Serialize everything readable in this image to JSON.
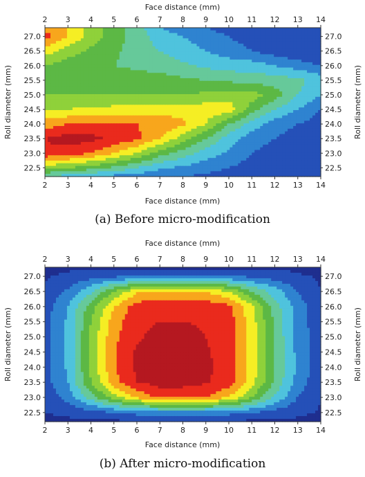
{
  "palette": {
    "levels": [
      "#1f2e8f",
      "#2550b8",
      "#2f83d0",
      "#4fc3dd",
      "#66c99a",
      "#5cb845",
      "#8fd13a",
      "#f5ee24",
      "#f8a61c",
      "#ea2a1d",
      "#b51820"
    ]
  },
  "chart_data": [
    {
      "type": "heatmap",
      "caption": "(a) Before micro-modification",
      "xlabel": "Face distance (mm)",
      "ylabel": "Roll diameter (mm)",
      "x_ticks": [
        "2",
        "3",
        "4",
        "5",
        "6",
        "7",
        "8",
        "9",
        "10",
        "11",
        "12",
        "13",
        "14"
      ],
      "y_ticks": [
        "27.0",
        "26.5",
        "26.0",
        "25.5",
        "25.0",
        "24.5",
        "24.0",
        "23.5",
        "23.0",
        "22.5"
      ],
      "xlim": [
        2,
        14
      ],
      "ylim": [
        22.2,
        27.3
      ],
      "grid": false,
      "x": [
        2,
        3,
        4,
        5,
        6,
        7,
        8,
        9,
        10,
        11,
        12,
        13,
        14
      ],
      "y": [
        27.3,
        27.0,
        26.5,
        26.0,
        25.5,
        25.0,
        24.5,
        24.0,
        23.5,
        23.0,
        22.5,
        22.2
      ],
      "z": [
        [
          8.5,
          8.0,
          6.5,
          5.5,
          4.5,
          3.0,
          2.5,
          2.0,
          1.5,
          1.0,
          1.0,
          1.0,
          1.0
        ],
        [
          9.5,
          8.0,
          6.5,
          5.5,
          4.5,
          3.5,
          3.0,
          2.5,
          2.0,
          1.5,
          1.2,
          1.0,
          1.0
        ],
        [
          7.5,
          6.5,
          5.8,
          5.2,
          4.5,
          4.0,
          3.5,
          3.0,
          2.5,
          2.0,
          1.5,
          1.2,
          1.0
        ],
        [
          6.0,
          5.5,
          5.2,
          5.0,
          4.8,
          4.5,
          4.2,
          3.8,
          3.5,
          3.5,
          3.0,
          2.5,
          2.0
        ],
        [
          5.5,
          5.5,
          5.5,
          5.5,
          5.5,
          5.5,
          5.2,
          5.0,
          4.8,
          4.6,
          4.5,
          4.3,
          3.5
        ],
        [
          6.0,
          6.0,
          6.0,
          6.0,
          6.0,
          6.0,
          6.0,
          6.2,
          6.5,
          6.5,
          5.5,
          4.0,
          3.0
        ],
        [
          7.0,
          7.0,
          7.2,
          7.3,
          7.4,
          7.5,
          7.5,
          7.6,
          7.6,
          5.5,
          4.0,
          3.0,
          2.0
        ],
        [
          8.5,
          9.0,
          9.2,
          9.2,
          9.0,
          8.8,
          8.2,
          7.0,
          5.0,
          3.5,
          2.5,
          2.0,
          1.5
        ],
        [
          10.0,
          10.5,
          10.3,
          9.8,
          9.2,
          8.0,
          6.5,
          5.0,
          3.5,
          2.5,
          2.0,
          1.5,
          1.2
        ],
        [
          9.8,
          9.5,
          9.0,
          8.0,
          7.0,
          5.5,
          4.5,
          3.5,
          2.8,
          2.0,
          1.5,
          1.2,
          1.0
        ],
        [
          6.5,
          6.0,
          5.5,
          4.8,
          4.0,
          3.2,
          2.8,
          2.4,
          2.0,
          1.6,
          1.3,
          1.1,
          1.0
        ],
        [
          4.0,
          3.5,
          3.0,
          2.7,
          2.4,
          2.2,
          2.0,
          1.8,
          1.6,
          1.4,
          1.2,
          1.0,
          1.0
        ]
      ]
    },
    {
      "type": "heatmap",
      "caption": "(b) After micro-modification",
      "xlabel": "Face distance (mm)",
      "ylabel": "Roll diameter (mm)",
      "x_ticks": [
        "2",
        "3",
        "4",
        "5",
        "6",
        "7",
        "8",
        "9",
        "10",
        "11",
        "12",
        "13",
        "14"
      ],
      "y_ticks": [
        "27.0",
        "26.5",
        "26.0",
        "25.5",
        "25.0",
        "24.5",
        "24.0",
        "23.5",
        "23.0",
        "22.5"
      ],
      "xlim": [
        2,
        14
      ],
      "ylim": [
        22.2,
        27.3
      ],
      "grid": false,
      "x": [
        2,
        3,
        4,
        5,
        6,
        7,
        8,
        9,
        10,
        11,
        12,
        13,
        14
      ],
      "y": [
        27.3,
        27.0,
        26.5,
        26.0,
        25.5,
        25.0,
        24.5,
        24.0,
        23.5,
        23.0,
        22.5,
        22.2
      ],
      "z": [
        [
          0.8,
          0.8,
          0.8,
          0.8,
          0.8,
          0.8,
          0.8,
          0.8,
          0.8,
          0.8,
          0.8,
          0.8,
          0.8
        ],
        [
          0.9,
          1.2,
          1.6,
          1.8,
          2.0,
          2.0,
          2.0,
          2.0,
          2.0,
          1.8,
          1.5,
          1.1,
          0.9
        ],
        [
          1.2,
          2.2,
          3.8,
          6.0,
          7.8,
          8.2,
          8.2,
          8.0,
          7.0,
          5.0,
          3.5,
          2.0,
          1.0
        ],
        [
          1.5,
          3.0,
          5.5,
          8.0,
          9.5,
          9.6,
          9.6,
          9.6,
          9.3,
          7.2,
          4.5,
          2.5,
          1.2
        ],
        [
          1.6,
          3.2,
          6.0,
          8.6,
          9.6,
          10.0,
          10.0,
          9.8,
          9.5,
          7.5,
          4.8,
          2.6,
          1.2
        ],
        [
          1.6,
          3.2,
          6.2,
          8.8,
          9.8,
          10.5,
          10.6,
          10.0,
          9.6,
          7.5,
          4.8,
          2.7,
          1.3
        ],
        [
          1.6,
          3.2,
          6.2,
          8.8,
          10.2,
          10.8,
          10.6,
          10.1,
          9.6,
          7.5,
          4.8,
          2.7,
          1.3
        ],
        [
          1.6,
          3.2,
          6.2,
          8.9,
          10.2,
          10.8,
          10.6,
          10.2,
          9.6,
          7.6,
          4.9,
          2.8,
          1.3
        ],
        [
          1.6,
          3.0,
          6.0,
          8.6,
          10.0,
          10.4,
          10.4,
          10.1,
          9.5,
          7.4,
          4.8,
          2.6,
          1.2
        ],
        [
          1.3,
          2.4,
          4.5,
          6.5,
          8.2,
          9.2,
          9.2,
          9.0,
          8.0,
          6.0,
          3.8,
          2.0,
          1.0
        ],
        [
          1.0,
          1.2,
          1.6,
          2.0,
          2.4,
          2.6,
          2.6,
          2.6,
          2.4,
          2.0,
          1.6,
          1.2,
          0.9
        ],
        [
          0.8,
          0.8,
          0.8,
          0.8,
          0.8,
          0.8,
          0.8,
          0.8,
          0.8,
          0.8,
          0.8,
          0.8,
          0.8
        ]
      ]
    }
  ]
}
